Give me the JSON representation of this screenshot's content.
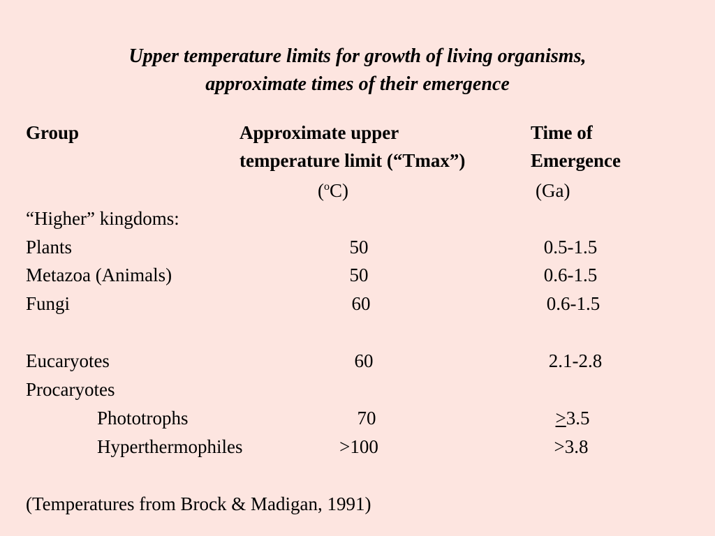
{
  "slide": {
    "title_line1": "Upper temperature limits for growth of living organisms,",
    "title_line2": "approximate times of their emergence"
  },
  "table": {
    "headers": {
      "group": "Group",
      "temp_line1": "Approximate upper",
      "temp_line2": "temperature limit (“Tmax”)",
      "temp_unit_open": "(",
      "temp_unit_sup": "o",
      "temp_unit_rest": "C)",
      "time_line1": "Time of",
      "time_line2": "Emergence",
      "time_unit": "(Ga)"
    },
    "section_higher": "“Higher” kingdoms:",
    "rows": [
      {
        "group": "Plants",
        "tmax": "50",
        "time": "0.5-1.5"
      },
      {
        "group": "Metazoa  (Animals)",
        "tmax": "50",
        "time": "0.6-1.5"
      },
      {
        "group": "Fungi",
        "tmax": "60",
        "time": "0.6-1.5"
      },
      {
        "group": "Eucaryotes",
        "tmax": "60",
        "time": "2.1-2.8"
      },
      {
        "group": "Procaryotes",
        "tmax": "",
        "time": ""
      },
      {
        "group": "Phototrophs",
        "tmax": "70",
        "time_prefix": ">",
        "time_value": "3.5"
      },
      {
        "group": "Hyperthermophiles",
        "tmax": ">100",
        "time": ">3.8"
      }
    ]
  },
  "footnote": "(Temperatures from Brock & Madigan, 1991)"
}
